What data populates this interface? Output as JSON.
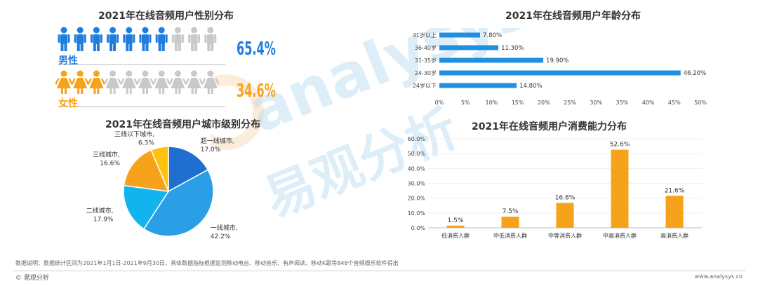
{
  "gender": {
    "title": "2021年在线音频用户性别分布",
    "male_label": "男性",
    "male_pct": "65.4%",
    "male_value": 65.4,
    "female_label": "女性",
    "female_pct": "34.6%",
    "female_value": 34.6,
    "icons_per_row": 10,
    "colors": {
      "male": "#1f7ddd",
      "female": "#f7a21b",
      "inactive": "#c9c9c9"
    }
  },
  "city_tier": {
    "title": "2021年在线音频用户城市级别分布",
    "slices": [
      {
        "label": "超一线城市,",
        "pct": "17.0%",
        "value": 17.0,
        "color": "#1f6fd0"
      },
      {
        "label": "一线城市,",
        "pct": "42.2%",
        "value": 42.2,
        "color": "#2b9fe6"
      },
      {
        "label": "二线城市,",
        "pct": "17.9%",
        "value": 17.9,
        "color": "#12b4ee"
      },
      {
        "label": "三线城市,",
        "pct": "16.6%",
        "value": 16.6,
        "color": "#f7a21b"
      },
      {
        "label": "三线以下城市,",
        "pct": "6.3%",
        "value": 6.3,
        "color": "#ffc20e"
      }
    ]
  },
  "age": {
    "title": "2021年在线音频用户年龄分布",
    "bar_color": "#1f8fe0",
    "categories": [
      "41岁以上",
      "36-40岁",
      "31-35岁",
      "24-30岁",
      "24岁以下"
    ],
    "values": [
      7.8,
      11.3,
      19.9,
      46.2,
      14.8
    ],
    "value_labels": [
      "7.80%",
      "11.30%",
      "19.90%",
      "46.20%",
      "14.80%"
    ],
    "xticks": [
      "0%",
      "5%",
      "10%",
      "15%",
      "20%",
      "25%",
      "30%",
      "35%",
      "40%",
      "45%",
      "50%"
    ],
    "xmax": 50
  },
  "consumption": {
    "title": "2021年在线音频用户消费能力分布",
    "bar_color": "#f7a21b",
    "categories": [
      "低消费人群",
      "中低消费人群",
      "中等消费人群",
      "中高消费人群",
      "高消费人群"
    ],
    "values": [
      1.5,
      7.5,
      16.8,
      52.6,
      21.6
    ],
    "value_labels": [
      "1.5%",
      "7.5%",
      "16.8%",
      "52.6%",
      "21.6%"
    ],
    "yticks": [
      "0.0%",
      "10.0%",
      "20.0%",
      "30.0%",
      "40.0%",
      "50.0%",
      "60.0%"
    ],
    "ymax": 60
  },
  "chart_data": [
    {
      "type": "pie",
      "title": "2021年在线音频用户性别分布",
      "categories": [
        "男性",
        "女性"
      ],
      "values": [
        65.4,
        34.6
      ]
    },
    {
      "type": "pie",
      "title": "2021年在线音频用户城市级别分布",
      "categories": [
        "超一线城市",
        "一线城市",
        "二线城市",
        "三线城市",
        "三线以下城市"
      ],
      "values": [
        17.0,
        42.2,
        17.9,
        16.6,
        6.3
      ]
    },
    {
      "type": "bar",
      "orientation": "horizontal",
      "title": "2021年在线音频用户年龄分布",
      "categories": [
        "41岁以上",
        "36-40岁",
        "31-35岁",
        "24-30岁",
        "24岁以下"
      ],
      "values": [
        7.8,
        11.3,
        19.9,
        46.2,
        14.8
      ],
      "xlim": [
        0,
        50
      ]
    },
    {
      "type": "bar",
      "title": "2021年在线音频用户消费能力分布",
      "categories": [
        "低消费人群",
        "中低消费人群",
        "中等消费人群",
        "中高消费人群",
        "高消费人群"
      ],
      "values": [
        1.5,
        7.5,
        16.8,
        52.6,
        21.6
      ],
      "ylim": [
        0,
        60
      ]
    }
  ],
  "watermark": {
    "latin": "analysys",
    "cjk": "易观分析"
  },
  "footer": {
    "note": "数据说明：数据统计区间为2021年1月1日-2021年9月30日，具体数据指标根据监测移动电台、移动音乐、有声阅读、移动K歌等848个音频娱乐软件得出",
    "brand": "© 易观分析",
    "site": "www.analysys.cn"
  }
}
